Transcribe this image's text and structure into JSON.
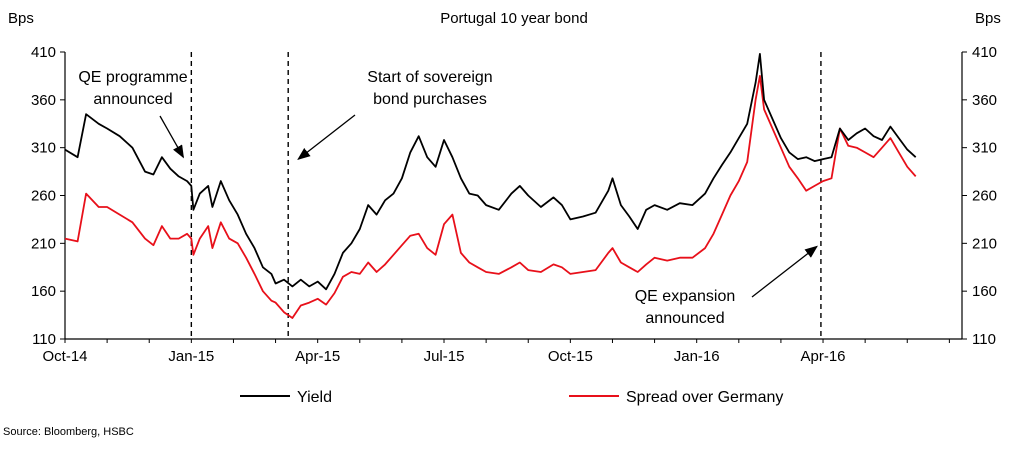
{
  "chart_data": {
    "type": "line",
    "title": "Portugal 10 year bond",
    "ylabel_left": "Bps",
    "ylabel_right": "Bps",
    "ylim": [
      110,
      410
    ],
    "yticks": [
      "410",
      "360",
      "310",
      "260",
      "210",
      "160",
      "110"
    ],
    "xticks": [
      "Oct-14",
      "Jan-15",
      "Apr-15",
      "Jul-15",
      "Oct-15",
      "Jan-16",
      "Apr-16"
    ],
    "x_unit": "month index from Oct-14",
    "series": [
      {
        "name": "Yield",
        "color": "#000000",
        "points": [
          [
            0.0,
            308
          ],
          [
            0.3,
            300
          ],
          [
            0.5,
            345
          ],
          [
            0.8,
            335
          ],
          [
            1.0,
            330
          ],
          [
            1.3,
            322
          ],
          [
            1.6,
            310
          ],
          [
            1.9,
            285
          ],
          [
            2.1,
            282
          ],
          [
            2.3,
            300
          ],
          [
            2.5,
            288
          ],
          [
            2.7,
            280
          ],
          [
            2.9,
            275
          ],
          [
            3.0,
            270
          ],
          [
            3.05,
            245
          ],
          [
            3.2,
            262
          ],
          [
            3.4,
            270
          ],
          [
            3.5,
            248
          ],
          [
            3.7,
            275
          ],
          [
            3.9,
            255
          ],
          [
            4.1,
            240
          ],
          [
            4.3,
            220
          ],
          [
            4.5,
            205
          ],
          [
            4.7,
            185
          ],
          [
            4.9,
            178
          ],
          [
            5.0,
            168
          ],
          [
            5.2,
            172
          ],
          [
            5.4,
            165
          ],
          [
            5.6,
            172
          ],
          [
            5.8,
            165
          ],
          [
            6.0,
            170
          ],
          [
            6.2,
            162
          ],
          [
            6.4,
            178
          ],
          [
            6.6,
            200
          ],
          [
            6.8,
            210
          ],
          [
            7.0,
            225
          ],
          [
            7.2,
            250
          ],
          [
            7.4,
            240
          ],
          [
            7.6,
            255
          ],
          [
            7.8,
            262
          ],
          [
            8.0,
            278
          ],
          [
            8.2,
            305
          ],
          [
            8.4,
            322
          ],
          [
            8.6,
            300
          ],
          [
            8.8,
            290
          ],
          [
            9.0,
            318
          ],
          [
            9.2,
            300
          ],
          [
            9.4,
            278
          ],
          [
            9.6,
            262
          ],
          [
            9.8,
            260
          ],
          [
            10.0,
            250
          ],
          [
            10.3,
            245
          ],
          [
            10.6,
            262
          ],
          [
            10.8,
            270
          ],
          [
            11.0,
            260
          ],
          [
            11.3,
            248
          ],
          [
            11.6,
            258
          ],
          [
            11.8,
            250
          ],
          [
            12.0,
            235
          ],
          [
            12.3,
            238
          ],
          [
            12.6,
            242
          ],
          [
            12.9,
            265
          ],
          [
            13.0,
            278
          ],
          [
            13.2,
            250
          ],
          [
            13.4,
            238
          ],
          [
            13.6,
            225
          ],
          [
            13.8,
            245
          ],
          [
            14.0,
            250
          ],
          [
            14.3,
            245
          ],
          [
            14.6,
            252
          ],
          [
            14.9,
            250
          ],
          [
            15.2,
            262
          ],
          [
            15.4,
            278
          ],
          [
            15.6,
            292
          ],
          [
            15.8,
            305
          ],
          [
            16.0,
            320
          ],
          [
            16.2,
            335
          ],
          [
            16.4,
            378
          ],
          [
            16.5,
            408
          ],
          [
            16.6,
            360
          ],
          [
            16.8,
            340
          ],
          [
            17.0,
            320
          ],
          [
            17.2,
            305
          ],
          [
            17.4,
            298
          ],
          [
            17.6,
            300
          ],
          [
            17.8,
            296
          ],
          [
            18.0,
            298
          ],
          [
            18.2,
            300
          ],
          [
            18.4,
            330
          ],
          [
            18.6,
            318
          ],
          [
            18.8,
            325
          ],
          [
            19.0,
            330
          ],
          [
            19.2,
            322
          ],
          [
            19.4,
            318
          ],
          [
            19.6,
            332
          ],
          [
            19.8,
            320
          ],
          [
            20.0,
            308
          ],
          [
            20.2,
            300
          ]
        ]
      },
      {
        "name": "Spread over Germany",
        "color": "#e8101a",
        "points": [
          [
            0.0,
            215
          ],
          [
            0.3,
            212
          ],
          [
            0.5,
            262
          ],
          [
            0.8,
            248
          ],
          [
            1.0,
            248
          ],
          [
            1.3,
            240
          ],
          [
            1.6,
            232
          ],
          [
            1.9,
            215
          ],
          [
            2.1,
            208
          ],
          [
            2.3,
            228
          ],
          [
            2.5,
            215
          ],
          [
            2.7,
            215
          ],
          [
            2.9,
            220
          ],
          [
            3.0,
            215
          ],
          [
            3.05,
            198
          ],
          [
            3.2,
            215
          ],
          [
            3.4,
            228
          ],
          [
            3.5,
            205
          ],
          [
            3.7,
            232
          ],
          [
            3.9,
            215
          ],
          [
            4.1,
            210
          ],
          [
            4.3,
            195
          ],
          [
            4.5,
            178
          ],
          [
            4.7,
            160
          ],
          [
            4.9,
            150
          ],
          [
            5.0,
            148
          ],
          [
            5.2,
            138
          ],
          [
            5.4,
            132
          ],
          [
            5.6,
            145
          ],
          [
            5.8,
            148
          ],
          [
            6.0,
            152
          ],
          [
            6.2,
            146
          ],
          [
            6.4,
            158
          ],
          [
            6.6,
            175
          ],
          [
            6.8,
            180
          ],
          [
            7.0,
            178
          ],
          [
            7.2,
            190
          ],
          [
            7.4,
            180
          ],
          [
            7.6,
            188
          ],
          [
            7.8,
            198
          ],
          [
            8.0,
            208
          ],
          [
            8.2,
            218
          ],
          [
            8.4,
            220
          ],
          [
            8.6,
            205
          ],
          [
            8.8,
            198
          ],
          [
            9.0,
            230
          ],
          [
            9.2,
            240
          ],
          [
            9.4,
            200
          ],
          [
            9.6,
            190
          ],
          [
            9.8,
            185
          ],
          [
            10.0,
            180
          ],
          [
            10.3,
            178
          ],
          [
            10.6,
            185
          ],
          [
            10.8,
            190
          ],
          [
            11.0,
            182
          ],
          [
            11.3,
            180
          ],
          [
            11.6,
            188
          ],
          [
            11.8,
            185
          ],
          [
            12.0,
            178
          ],
          [
            12.3,
            180
          ],
          [
            12.6,
            182
          ],
          [
            12.9,
            200
          ],
          [
            13.0,
            205
          ],
          [
            13.2,
            190
          ],
          [
            13.4,
            185
          ],
          [
            13.6,
            180
          ],
          [
            13.8,
            188
          ],
          [
            14.0,
            195
          ],
          [
            14.3,
            192
          ],
          [
            14.6,
            195
          ],
          [
            14.9,
            195
          ],
          [
            15.2,
            205
          ],
          [
            15.4,
            220
          ],
          [
            15.6,
            240
          ],
          [
            15.8,
            260
          ],
          [
            16.0,
            275
          ],
          [
            16.2,
            295
          ],
          [
            16.4,
            360
          ],
          [
            16.5,
            385
          ],
          [
            16.6,
            350
          ],
          [
            16.8,
            330
          ],
          [
            17.0,
            310
          ],
          [
            17.2,
            290
          ],
          [
            17.4,
            278
          ],
          [
            17.6,
            265
          ],
          [
            17.8,
            270
          ],
          [
            18.0,
            275
          ],
          [
            18.2,
            278
          ],
          [
            18.4,
            330
          ],
          [
            18.6,
            312
          ],
          [
            18.8,
            310
          ],
          [
            19.0,
            305
          ],
          [
            19.2,
            300
          ],
          [
            19.4,
            310
          ],
          [
            19.6,
            320
          ],
          [
            19.8,
            305
          ],
          [
            20.0,
            290
          ],
          [
            20.2,
            280
          ]
        ]
      }
    ],
    "vlines": [
      3.0,
      5.3,
      17.95
    ],
    "annotations": [
      {
        "lines": [
          "QE programme",
          "announced"
        ],
        "arrow_to": [
          3.0,
          300
        ]
      },
      {
        "lines": [
          "Start of sovereign",
          "bond purchases"
        ],
        "arrow_to": [
          5.3,
          300
        ]
      },
      {
        "lines": [
          "QE expansion",
          "announced"
        ],
        "arrow_to": [
          17.95,
          213
        ]
      }
    ],
    "legend": [
      {
        "label": "Yield",
        "color": "#000000"
      },
      {
        "label": "Spread over Germany",
        "color": "#e8101a"
      }
    ],
    "legend_position": "bottom",
    "grid": false
  },
  "source_text": "Source: Bloomberg, HSBC"
}
